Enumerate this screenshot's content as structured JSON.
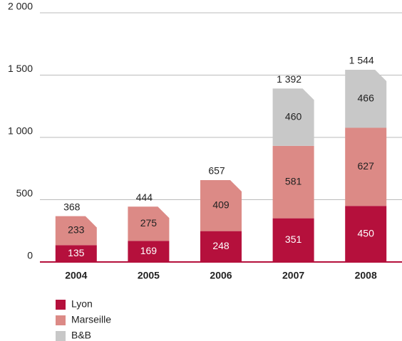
{
  "chart_data": {
    "type": "stacked_bar",
    "categories": [
      "2004",
      "2005",
      "2006",
      "2007",
      "2008"
    ],
    "series": [
      {
        "name": "Lyon",
        "color": "#b5103c",
        "values": [
          135,
          169,
          248,
          351,
          450
        ]
      },
      {
        "name": "Marseille",
        "color": "#dc8a86",
        "values": [
          233,
          275,
          409,
          581,
          627
        ]
      },
      {
        "name": "B&B",
        "color": "#c8c8c8",
        "values": [
          null,
          null,
          null,
          460,
          466
        ]
      }
    ],
    "totals": [
      368,
      444,
      657,
      {
        "value": 1392,
        "label": "1 392"
      },
      {
        "value": 1544,
        "label": "1 544"
      }
    ],
    "ylim": [
      0,
      2000
    ],
    "yticks": [
      0,
      500,
      {
        "value": 1000,
        "label": "1 000"
      },
      {
        "value": 1500,
        "label": "1 500"
      },
      {
        "value": 2000,
        "label": "2 000"
      }
    ],
    "grid": true,
    "legend": "bottom-left"
  }
}
